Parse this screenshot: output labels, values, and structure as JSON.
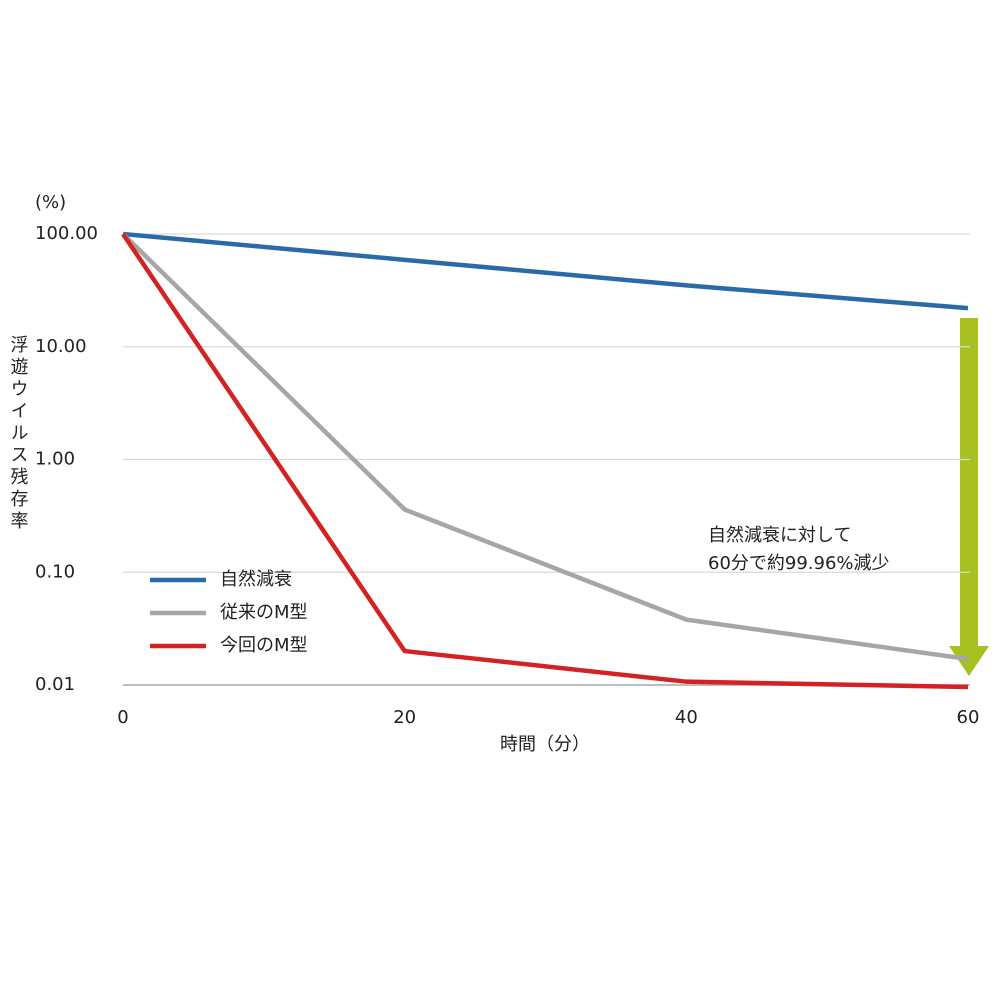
{
  "chart_data": {
    "type": "line",
    "y_unit": "(%)",
    "y_label": "浮遊ウイルス残存率",
    "x_label": "時間（分）",
    "annotation": [
      "自然減衰に対して",
      "60分で約99.96%減少"
    ],
    "x": [
      0,
      20,
      40,
      60
    ],
    "xlim": [
      0,
      60
    ],
    "xticks": [
      0,
      20,
      40,
      60
    ],
    "ylim": [
      0.01,
      100
    ],
    "y_scale": "log",
    "yticks": [
      {
        "value": 100,
        "label": "100.00"
      },
      {
        "value": 10,
        "label": "10.00"
      },
      {
        "value": 1,
        "label": "1.00"
      },
      {
        "value": 0.1,
        "label": "0.10"
      },
      {
        "value": 0.01,
        "label": "0.01"
      }
    ],
    "grid": true,
    "legend": "lower-left",
    "series": [
      {
        "name": "自然減衰",
        "color": "#2a6aa8",
        "values": [
          100,
          59,
          35,
          22
        ]
      },
      {
        "name": "従来のM型",
        "color": "#a6a6a6",
        "values": [
          100,
          0.36,
          0.038,
          0.017
        ]
      },
      {
        "name": "今回のM型",
        "color": "#d42222",
        "values": [
          100,
          0.02,
          0.0107,
          0.0096
        ]
      }
    ]
  }
}
